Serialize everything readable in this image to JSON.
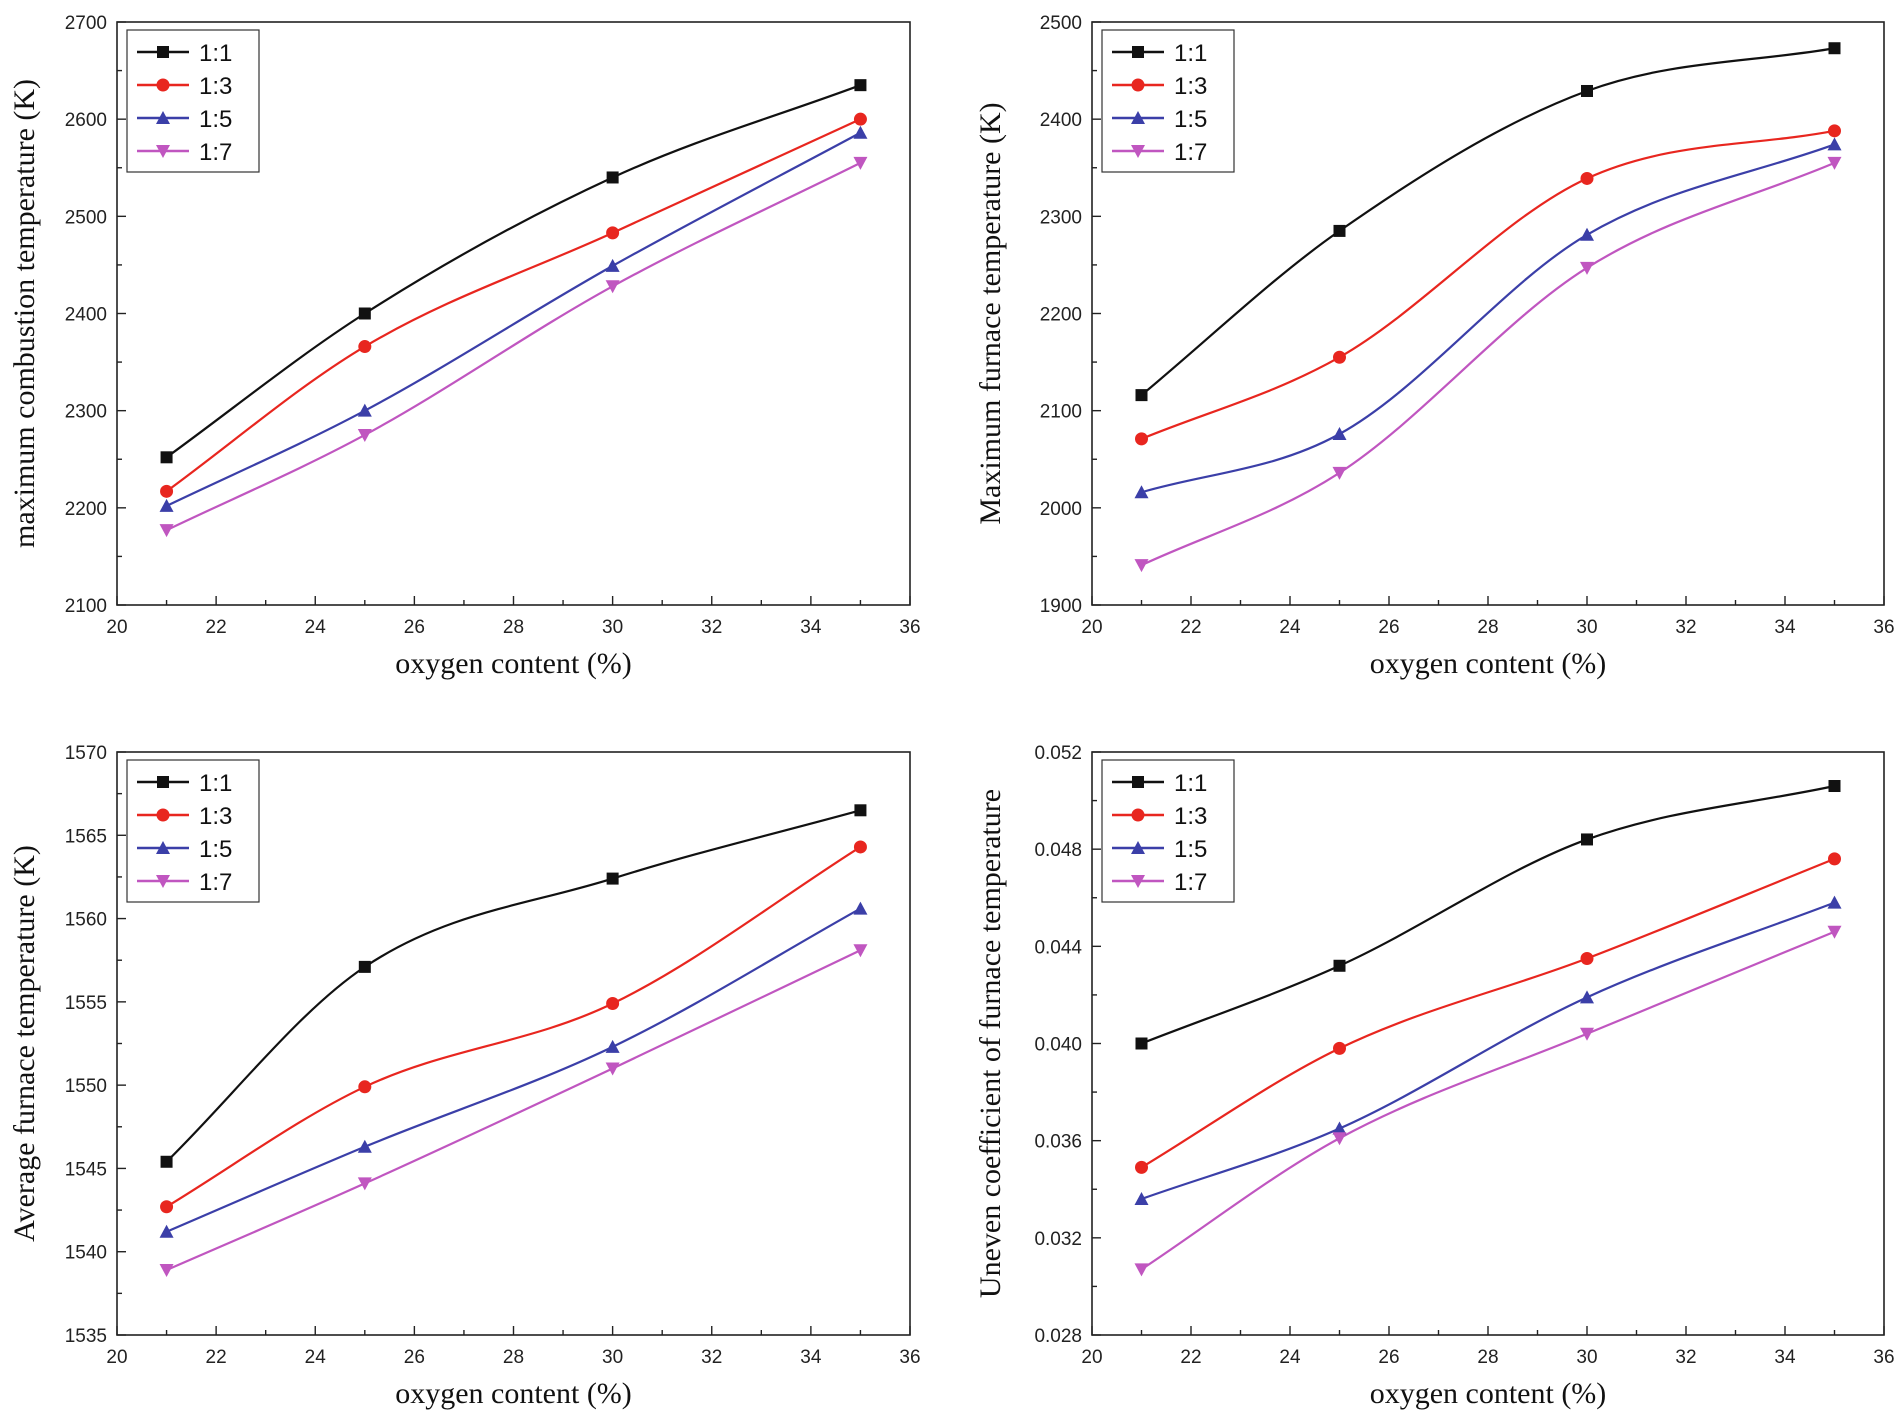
{
  "chart_data": [
    {
      "type": "line",
      "xlabel": "oxygen content (%)",
      "ylabel": "maximum combustion temperature (K)",
      "xlim": [
        20,
        36
      ],
      "ylim": [
        2100,
        2700
      ],
      "xticks": [
        "20",
        "22",
        "24",
        "26",
        "28",
        "30",
        "32",
        "34",
        "36"
      ],
      "yticks": [
        "2100",
        "2200",
        "2300",
        "2400",
        "2500",
        "2600",
        "2700"
      ],
      "legend": "top-left",
      "x": [
        21,
        25,
        30,
        35
      ],
      "series": [
        {
          "name": "1:1",
          "color": "#111111",
          "marker": "square",
          "values": [
            2252,
            2400,
            2540,
            2635
          ]
        },
        {
          "name": "1:3",
          "color": "#e8261f",
          "marker": "circle",
          "values": [
            2217,
            2366,
            2483,
            2600
          ]
        },
        {
          "name": "1:5",
          "color": "#3b3fa8",
          "marker": "triangle-up",
          "values": [
            2202,
            2300,
            2449,
            2586
          ]
        },
        {
          "name": "1:7",
          "color": "#c056c0",
          "marker": "triangle-down",
          "values": [
            2177,
            2275,
            2428,
            2555
          ]
        }
      ]
    },
    {
      "type": "line",
      "xlabel": "oxygen content (%)",
      "ylabel": "Maximum furnace temperature (K)",
      "xlim": [
        20,
        36
      ],
      "ylim": [
        1900,
        2500
      ],
      "xticks": [
        "20",
        "22",
        "24",
        "26",
        "28",
        "30",
        "32",
        "34",
        "36"
      ],
      "yticks": [
        "1900",
        "2000",
        "2100",
        "2200",
        "2300",
        "2400",
        "2500"
      ],
      "legend": "top-left",
      "x": [
        21,
        25,
        30,
        35
      ],
      "series": [
        {
          "name": "1:1",
          "color": "#111111",
          "marker": "square",
          "values": [
            2116,
            2285,
            2429,
            2473
          ]
        },
        {
          "name": "1:3",
          "color": "#e8261f",
          "marker": "circle",
          "values": [
            2071,
            2155,
            2339,
            2388
          ]
        },
        {
          "name": "1:5",
          "color": "#3b3fa8",
          "marker": "triangle-up",
          "values": [
            2016,
            2076,
            2281,
            2374
          ]
        },
        {
          "name": "1:7",
          "color": "#c056c0",
          "marker": "triangle-down",
          "values": [
            1941,
            2036,
            2247,
            2355
          ]
        }
      ]
    },
    {
      "type": "line",
      "xlabel": "oxygen content (%)",
      "ylabel": "Average furnace temperature (K)",
      "xlim": [
        20,
        36
      ],
      "ylim": [
        1535,
        1570
      ],
      "xticks": [
        "20",
        "22",
        "24",
        "26",
        "28",
        "30",
        "32",
        "34",
        "36"
      ],
      "yticks": [
        "1535",
        "1540",
        "1545",
        "1550",
        "1555",
        "1560",
        "1565",
        "1570"
      ],
      "legend": "top-left",
      "x": [
        21,
        25,
        30,
        35
      ],
      "series": [
        {
          "name": "1:1",
          "color": "#111111",
          "marker": "square",
          "values": [
            1545.4,
            1557.1,
            1562.4,
            1566.5
          ]
        },
        {
          "name": "1:3",
          "color": "#e8261f",
          "marker": "circle",
          "values": [
            1542.7,
            1549.9,
            1554.9,
            1564.3
          ]
        },
        {
          "name": "1:5",
          "color": "#3b3fa8",
          "marker": "triangle-up",
          "values": [
            1541.2,
            1546.3,
            1552.3,
            1560.6
          ]
        },
        {
          "name": "1:7",
          "color": "#c056c0",
          "marker": "triangle-down",
          "values": [
            1538.9,
            1544.1,
            1551.0,
            1558.1
          ]
        }
      ]
    },
    {
      "type": "line",
      "xlabel": "oxygen content (%)",
      "ylabel": "Uneven coefficient of furnace temperature",
      "xlim": [
        20,
        36
      ],
      "ylim": [
        0.028,
        0.052
      ],
      "xticks": [
        "20",
        "22",
        "24",
        "26",
        "28",
        "30",
        "32",
        "34",
        "36"
      ],
      "yticks": [
        "0.028",
        "0.032",
        "0.036",
        "0.040",
        "0.044",
        "0.048",
        "0.052"
      ],
      "legend": "top-left",
      "x": [
        21,
        25,
        30,
        35
      ],
      "series": [
        {
          "name": "1:1",
          "color": "#111111",
          "marker": "square",
          "values": [
            0.04,
            0.0432,
            0.0484,
            0.0506
          ]
        },
        {
          "name": "1:3",
          "color": "#e8261f",
          "marker": "circle",
          "values": [
            0.0349,
            0.0398,
            0.0435,
            0.0476
          ]
        },
        {
          "name": "1:5",
          "color": "#3b3fa8",
          "marker": "triangle-up",
          "values": [
            0.0336,
            0.0365,
            0.0419,
            0.0458
          ]
        },
        {
          "name": "1:7",
          "color": "#c056c0",
          "marker": "triangle-down",
          "values": [
            0.0307,
            0.0361,
            0.0404,
            0.0446
          ]
        }
      ]
    }
  ]
}
